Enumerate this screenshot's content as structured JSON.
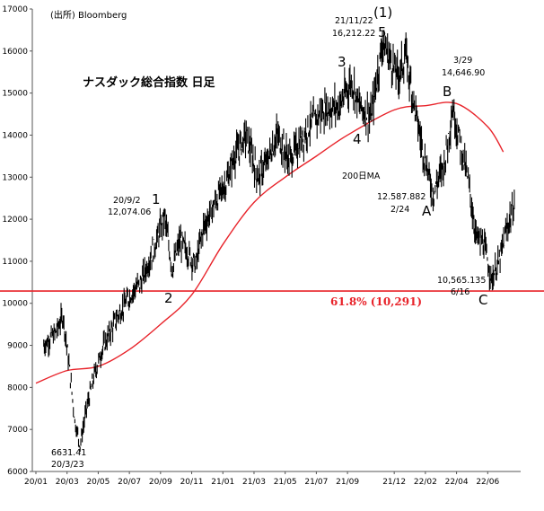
{
  "source_label": "(出所)  Bloomberg",
  "title": "ナスダック総合指数 日足",
  "ma_label": "200日MA",
  "fib_label": "61.8% (10,291)",
  "annotations": {
    "low_2020_value": "6631.41",
    "low_2020_date": "20/3/23",
    "peak_1_date": "20/9/2",
    "peak_1_value": "12,074.06",
    "wave_1": "1",
    "wave_2": "2",
    "wave_3": "3",
    "wave_4": "4",
    "wave_5": "5",
    "wave_big_1": "(1)",
    "top_date": "21/11/22",
    "top_value": "16,212.22",
    "b_date": "3/29",
    "b_value": "14,646.90",
    "wave_a": "A",
    "wave_b": "B",
    "wave_c": "C",
    "a_value": "12.587.882",
    "a_date": "2/24",
    "c_value": "10,565.135",
    "c_date": "6/16"
  },
  "colors": {
    "price": "#000000",
    "ma": "#e8232a",
    "fib": "#e8232a",
    "axis": "#555555"
  },
  "chart_data": {
    "type": "line",
    "title": "ナスダック総合指数 日足",
    "xlabel": "",
    "ylabel": "",
    "ylim": [
      6000,
      17000
    ],
    "y_ticks": [
      6000,
      7000,
      8000,
      9000,
      10000,
      11000,
      12000,
      13000,
      14000,
      15000,
      16000,
      17000
    ],
    "x_ticks": [
      "20/01",
      "20/03",
      "20/05",
      "20/07",
      "20/09",
      "20/11",
      "21/01",
      "21/03",
      "21/05",
      "21/07",
      "21/09",
      "21/12",
      "22/02",
      "22/04",
      "22/06"
    ],
    "grid": false,
    "legend": "none",
    "series": [
      {
        "name": "",
        "style": "daily-bars",
        "x": [
          "20/01",
          "20/02",
          "20/02",
          "20/03",
          "20/03",
          "20/03",
          "20/04",
          "20/04",
          "20/05",
          "20/05",
          "20/06",
          "20/06",
          "20/07",
          "20/07",
          "20/08",
          "20/08",
          "20/09",
          "20/09",
          "20/10",
          "20/10",
          "20/11",
          "20/11",
          "20/12",
          "21/01",
          "21/01",
          "21/02",
          "21/03",
          "21/03",
          "21/04",
          "21/05",
          "21/05",
          "21/06",
          "21/07",
          "21/08",
          "21/09",
          "21/09",
          "21/10",
          "21/11",
          "21/11",
          "21/12",
          "21/12",
          "22/01",
          "22/01",
          "22/02",
          "22/03",
          "22/03",
          "22/04",
          "22/04",
          "22/05",
          "22/05",
          "22/06",
          "22/06",
          "22/07",
          "22/07"
        ],
        "values": [
          9000,
          9300,
          9700,
          8400,
          7200,
          6631,
          7500,
          8300,
          8900,
          9300,
          9700,
          10000,
          10300,
          10500,
          11000,
          11500,
          12074,
          10800,
          11500,
          11200,
          10900,
          11800,
          12400,
          12900,
          13500,
          14000,
          13000,
          13300,
          14000,
          13400,
          13700,
          14200,
          14600,
          14700,
          15300,
          14700,
          14400,
          16212,
          15800,
          15400,
          15900,
          14800,
          13800,
          12588,
          13400,
          14647,
          13800,
          12900,
          11600,
          11400,
          10565,
          11000,
          11800,
          12400
        ]
      },
      {
        "name": "200日MA",
        "style": "line",
        "x": [
          "20/01",
          "20/03",
          "20/05",
          "20/07",
          "20/09",
          "20/11",
          "21/01",
          "21/03",
          "21/05",
          "21/07",
          "21/09",
          "21/12",
          "22/02",
          "22/04",
          "22/06",
          "22/07"
        ],
        "values": [
          8100,
          8400,
          8500,
          8900,
          9500,
          10200,
          11400,
          12400,
          13000,
          13500,
          14000,
          14600,
          14700,
          14750,
          14200,
          13600
        ]
      },
      {
        "name": "61.8% (10,291)",
        "style": "hline",
        "values": [
          10291
        ]
      }
    ]
  }
}
